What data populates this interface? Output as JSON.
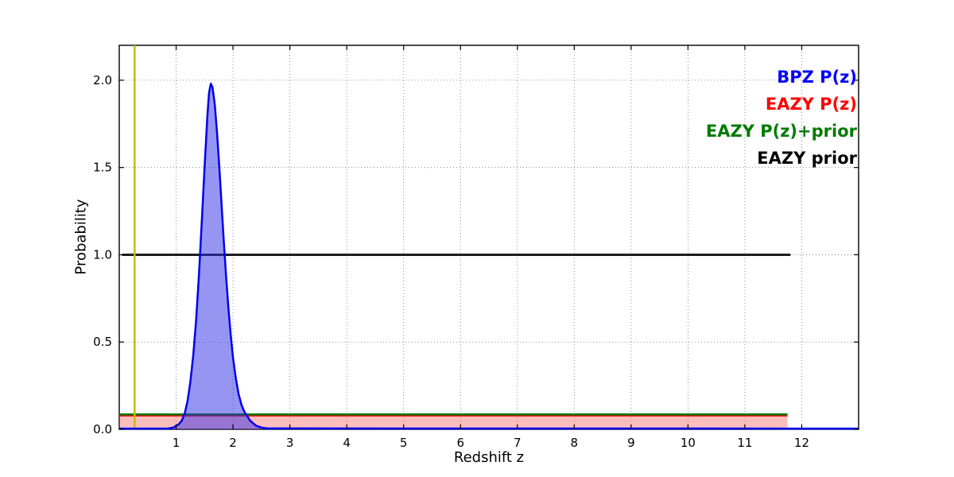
{
  "legend": {
    "items": [
      {
        "label": "BPZ P(z)",
        "color": "#0000ff"
      },
      {
        "label": "EAZY P(z)",
        "color": "#ff0000"
      },
      {
        "label": "EAZY P(z)+prior",
        "color": "#007a00"
      },
      {
        "label": "EAZY prior",
        "color": "#000000"
      }
    ]
  },
  "chart_data": {
    "type": "line",
    "title": "",
    "xlabel": "Redshift z",
    "ylabel": "Probability",
    "xlim": [
      0,
      13
    ],
    "ylim": [
      0,
      2.2
    ],
    "grid": true,
    "legend_position": "upper right",
    "xticks": [
      {
        "value": 1,
        "label": "1"
      },
      {
        "value": 2,
        "label": "2"
      },
      {
        "value": 3,
        "label": "3"
      },
      {
        "value": 4,
        "label": "4"
      },
      {
        "value": 5,
        "label": "5"
      },
      {
        "value": 6,
        "label": "6"
      },
      {
        "value": 7,
        "label": "7"
      },
      {
        "value": 8,
        "label": "8"
      },
      {
        "value": 9,
        "label": "9"
      },
      {
        "value": 10,
        "label": "10"
      },
      {
        "value": 11,
        "label": "11"
      },
      {
        "value": 12,
        "label": "12"
      }
    ],
    "yticks": [
      {
        "value": 0,
        "label": "0.0"
      },
      {
        "value": 0.5,
        "label": "0.5"
      },
      {
        "value": 1,
        "label": "1.0"
      },
      {
        "value": 1.5,
        "label": "1.5"
      },
      {
        "value": 2,
        "label": "2.0"
      }
    ],
    "series": [
      {
        "id": "bpz-pz",
        "name": "BPZ P(z)",
        "color": "#0000ee",
        "line_width": 2.5,
        "fill": true,
        "fill_color": "rgba(45,45,230,0.5)",
        "zorder": 5,
        "points": [
          [
            0.0,
            0.004
          ],
          [
            0.85,
            0.004
          ],
          [
            0.95,
            0.01
          ],
          [
            1.05,
            0.03
          ],
          [
            1.1,
            0.05
          ],
          [
            1.15,
            0.09
          ],
          [
            1.2,
            0.16
          ],
          [
            1.25,
            0.27
          ],
          [
            1.3,
            0.42
          ],
          [
            1.35,
            0.62
          ],
          [
            1.4,
            0.88
          ],
          [
            1.45,
            1.18
          ],
          [
            1.5,
            1.5
          ],
          [
            1.55,
            1.8
          ],
          [
            1.58,
            1.93
          ],
          [
            1.61,
            1.98
          ],
          [
            1.64,
            1.96
          ],
          [
            1.68,
            1.86
          ],
          [
            1.72,
            1.7
          ],
          [
            1.76,
            1.5
          ],
          [
            1.8,
            1.28
          ],
          [
            1.84,
            1.07
          ],
          [
            1.88,
            0.87
          ],
          [
            1.92,
            0.69
          ],
          [
            1.96,
            0.54
          ],
          [
            2.0,
            0.41
          ],
          [
            2.05,
            0.29
          ],
          [
            2.1,
            0.2
          ],
          [
            2.15,
            0.14
          ],
          [
            2.2,
            0.1
          ],
          [
            2.3,
            0.05
          ],
          [
            2.4,
            0.022
          ],
          [
            2.5,
            0.01
          ],
          [
            2.6,
            0.005
          ],
          [
            13.0,
            0.004
          ]
        ]
      },
      {
        "id": "eazy-pz",
        "name": "EAZY P(z)",
        "color": "#ff0000",
        "line_width": 2,
        "fill": true,
        "fill_color": "rgba(255,70,70,0.35)",
        "zorder": 1,
        "points": [
          [
            0.0,
            0.078
          ],
          [
            11.75,
            0.078
          ]
        ]
      },
      {
        "id": "eazy-pz-prior",
        "name": "EAZY P(z)+prior",
        "color": "#007a00",
        "line_width": 2.5,
        "fill": false,
        "zorder": 2,
        "points": [
          [
            0.0,
            0.085
          ],
          [
            11.75,
            0.085
          ]
        ]
      },
      {
        "id": "eazy-prior",
        "name": "EAZY prior",
        "color": "#1c1c1c",
        "line_width": 3,
        "fill": false,
        "zorder": 3,
        "points": [
          [
            0.05,
            1.0
          ],
          [
            11.8,
            1.0
          ]
        ]
      }
    ],
    "vline": {
      "id": "vertical-marker",
      "x": 0.27,
      "color": "#bfbf00",
      "line_width": 2.5,
      "zorder": 4
    }
  }
}
